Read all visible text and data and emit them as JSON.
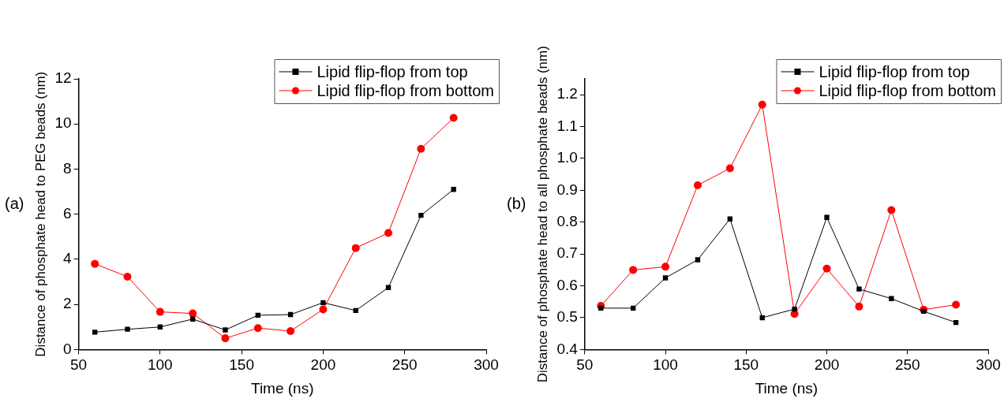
{
  "chart_data": [
    {
      "type": "line",
      "xlabel": "Time (ns)",
      "ylabel": "Distance of phosphate head to PEG beads (nm)",
      "annotations": [
        "(a)"
      ],
      "x": [
        60,
        80,
        100,
        120,
        140,
        160,
        180,
        200,
        220,
        240,
        260,
        280
      ],
      "xlim": [
        50,
        300
      ],
      "xticks": [
        50,
        100,
        150,
        200,
        250,
        300
      ],
      "ylim": [
        0,
        12
      ],
      "yticks": [
        0,
        2,
        4,
        6,
        8,
        10,
        12
      ],
      "grid": false,
      "legend": "top right",
      "series": [
        {
          "name": "Lipid flip-flop from top",
          "color": "#000000",
          "marker": "square",
          "values": [
            0.77,
            0.9,
            1.0,
            1.35,
            0.87,
            1.52,
            1.55,
            2.08,
            1.73,
            2.75,
            5.95,
            7.1
          ]
        },
        {
          "name": "Lipid flip-flop from bottom",
          "color": "#ff0000",
          "marker": "circle",
          "values": [
            3.8,
            3.23,
            1.67,
            1.6,
            0.5,
            0.95,
            0.82,
            1.78,
            4.5,
            5.17,
            8.9,
            10.27
          ]
        }
      ]
    },
    {
      "type": "line",
      "xlabel": "Time (ns)",
      "ylabel": "Distance of phosphate head to all phosphate beads (nm)",
      "annotations": [
        "(b)"
      ],
      "x": [
        60,
        80,
        100,
        120,
        140,
        160,
        180,
        200,
        220,
        240,
        260,
        280
      ],
      "xlim": [
        50,
        300
      ],
      "xticks": [
        50,
        100,
        150,
        200,
        250,
        300
      ],
      "ylim": [
        0.4,
        1.25
      ],
      "yticks": [
        {
          "value": 0.4,
          "label": "0.4"
        },
        {
          "value": 0.5,
          "label": "0.5"
        },
        {
          "value": 0.6,
          "label": "0.6"
        },
        {
          "value": 0.7,
          "label": "0.7"
        },
        {
          "value": 0.8,
          "label": "0.8"
        },
        {
          "value": 0.9,
          "label": "0.9"
        },
        {
          "value": 1.0,
          "label": "1.0"
        },
        {
          "value": 1.1,
          "label": "1.1"
        },
        {
          "value": 1.2,
          "label": "1.2"
        }
      ],
      "grid": false,
      "legend": "top right",
      "series": [
        {
          "name": "Lipid flip-flop from top",
          "color": "#000000",
          "marker": "square",
          "values": [
            0.53,
            0.53,
            0.625,
            0.682,
            0.81,
            0.5,
            0.527,
            0.815,
            0.59,
            0.56,
            0.52,
            0.485
          ]
        },
        {
          "name": "Lipid flip-flop from bottom",
          "color": "#ff0000",
          "marker": "circle",
          "values": [
            0.537,
            0.65,
            0.66,
            0.916,
            0.969,
            1.169,
            0.512,
            0.654,
            0.535,
            0.838,
            0.525,
            0.541
          ]
        }
      ]
    }
  ]
}
